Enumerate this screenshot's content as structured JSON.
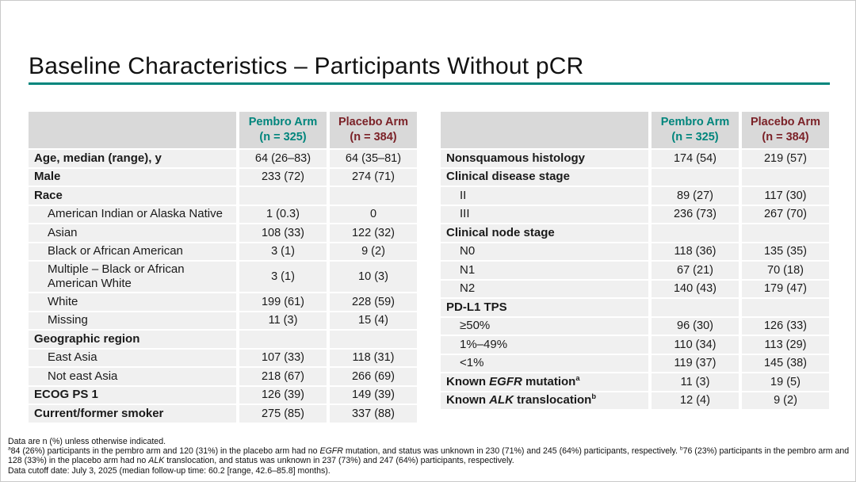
{
  "slide": {
    "title": "Baseline Characteristics – Participants Without pCR"
  },
  "colors": {
    "accent_teal": "#00857C",
    "accent_maroon": "#7B2228",
    "header_bg": "#D9D9D9",
    "row_bg": "#F0F0F0"
  },
  "column_headers": {
    "pembro_line1": "Pembro Arm",
    "pembro_line2": "(n = 325)",
    "placebo_line1": "Placebo Arm",
    "placebo_line2": "(n = 384)"
  },
  "tables": [
    {
      "name": "baseline-table-left",
      "rows": [
        {
          "bold": true,
          "indent": false,
          "label": [
            {
              "t": "Age, median (range), y"
            }
          ],
          "values": [
            "64 (26–83)",
            "64 (35–81)"
          ]
        },
        {
          "bold": true,
          "indent": false,
          "label": [
            {
              "t": "Male"
            }
          ],
          "values": [
            "233 (72)",
            "274 (71)"
          ]
        },
        {
          "bold": true,
          "indent": false,
          "label": [
            {
              "t": "Race"
            }
          ],
          "values": [
            "",
            ""
          ]
        },
        {
          "bold": false,
          "indent": true,
          "label": [
            {
              "t": "American Indian or Alaska Native"
            }
          ],
          "values": [
            "1 (0.3)",
            "0"
          ]
        },
        {
          "bold": false,
          "indent": true,
          "label": [
            {
              "t": "Asian"
            }
          ],
          "values": [
            "108 (33)",
            "122 (32)"
          ]
        },
        {
          "bold": false,
          "indent": true,
          "label": [
            {
              "t": "Black or African American"
            }
          ],
          "values": [
            "3 (1)",
            "9 (2)"
          ]
        },
        {
          "bold": false,
          "indent": true,
          "label": [
            {
              "t": "Multiple – Black or African American White"
            }
          ],
          "values": [
            "3 (1)",
            "10 (3)"
          ]
        },
        {
          "bold": false,
          "indent": true,
          "label": [
            {
              "t": "White"
            }
          ],
          "values": [
            "199 (61)",
            "228 (59)"
          ]
        },
        {
          "bold": false,
          "indent": true,
          "label": [
            {
              "t": "Missing"
            }
          ],
          "values": [
            "11 (3)",
            "15 (4)"
          ]
        },
        {
          "bold": true,
          "indent": false,
          "label": [
            {
              "t": "Geographic region"
            }
          ],
          "values": [
            "",
            ""
          ]
        },
        {
          "bold": false,
          "indent": true,
          "label": [
            {
              "t": "East Asia"
            }
          ],
          "values": [
            "107 (33)",
            "118 (31)"
          ]
        },
        {
          "bold": false,
          "indent": true,
          "label": [
            {
              "t": "Not east Asia"
            }
          ],
          "values": [
            "218 (67)",
            "266 (69)"
          ]
        },
        {
          "bold": true,
          "indent": false,
          "label": [
            {
              "t": "ECOG PS 1"
            }
          ],
          "values": [
            "126 (39)",
            "149 (39)"
          ]
        },
        {
          "bold": true,
          "indent": false,
          "label": [
            {
              "t": "Current/former smoker"
            }
          ],
          "values": [
            "275 (85)",
            "337 (88)"
          ]
        }
      ]
    },
    {
      "name": "baseline-table-right",
      "rows": [
        {
          "bold": true,
          "indent": false,
          "label": [
            {
              "t": "Nonsquamous histology"
            }
          ],
          "values": [
            "174 (54)",
            "219 (57)"
          ]
        },
        {
          "bold": true,
          "indent": false,
          "label": [
            {
              "t": "Clinical disease stage"
            }
          ],
          "values": [
            "",
            ""
          ]
        },
        {
          "bold": false,
          "indent": true,
          "label": [
            {
              "t": "II"
            }
          ],
          "values": [
            "89 (27)",
            "117 (30)"
          ]
        },
        {
          "bold": false,
          "indent": true,
          "label": [
            {
              "t": "III"
            }
          ],
          "values": [
            "236 (73)",
            "267 (70)"
          ]
        },
        {
          "bold": true,
          "indent": false,
          "label": [
            {
              "t": "Clinical node stage"
            }
          ],
          "values": [
            "",
            ""
          ]
        },
        {
          "bold": false,
          "indent": true,
          "label": [
            {
              "t": "N0"
            }
          ],
          "values": [
            "118 (36)",
            "135 (35)"
          ]
        },
        {
          "bold": false,
          "indent": true,
          "label": [
            {
              "t": "N1"
            }
          ],
          "values": [
            "67 (21)",
            "70 (18)"
          ]
        },
        {
          "bold": false,
          "indent": true,
          "label": [
            {
              "t": "N2"
            }
          ],
          "values": [
            "140 (43)",
            "179 (47)"
          ]
        },
        {
          "bold": true,
          "indent": false,
          "label": [
            {
              "t": "PD-L1 TPS"
            }
          ],
          "values": [
            "",
            ""
          ]
        },
        {
          "bold": false,
          "indent": true,
          "label": [
            {
              "t": "≥50%"
            }
          ],
          "values": [
            "96 (30)",
            "126 (33)"
          ]
        },
        {
          "bold": false,
          "indent": true,
          "label": [
            {
              "t": "1%–49%"
            }
          ],
          "values": [
            "110 (34)",
            "113 (29)"
          ]
        },
        {
          "bold": false,
          "indent": true,
          "label": [
            {
              "t": "<1%"
            }
          ],
          "values": [
            "119 (37)",
            "145 (38)"
          ]
        },
        {
          "bold": true,
          "indent": false,
          "label": [
            {
              "t": "Known "
            },
            {
              "t": "EGFR",
              "i": true
            },
            {
              "t": " mutation"
            },
            {
              "t": "a",
              "sup": true
            }
          ],
          "values": [
            "11 (3)",
            "19 (5)"
          ]
        },
        {
          "bold": true,
          "indent": false,
          "label": [
            {
              "t": "Known "
            },
            {
              "t": "ALK",
              "i": true
            },
            {
              "t": " translocation"
            },
            {
              "t": "b",
              "sup": true
            }
          ],
          "values": [
            "12 (4)",
            "9 (2)"
          ]
        }
      ]
    }
  ],
  "footnotes": [
    {
      "rich": [
        {
          "t": "Data are n (%) unless otherwise indicated."
        }
      ]
    },
    {
      "rich": [
        {
          "t": "a",
          "sup": true
        },
        {
          "t": "84 (26%) participants in the pembro arm and 120 (31%) in the placebo arm had no "
        },
        {
          "t": "EGFR",
          "i": true
        },
        {
          "t": " mutation, and status was unknown in 230 (71%) and 245 (64%) participants, respectively. "
        },
        {
          "t": "b",
          "sup": true
        },
        {
          "t": "76 (23%) participants in the pembro arm and 128 (33%) in the placebo arm had no "
        },
        {
          "t": "ALK",
          "i": true
        },
        {
          "t": " translocation, and status was unknown in 237 (73%) and 247 (64%) participants, respectively."
        }
      ]
    },
    {
      "rich": [
        {
          "t": "Data cutoff date: July 3, 2025 (median follow-up time: 60.2 [range, 42.6–85.8] months)."
        }
      ]
    }
  ]
}
